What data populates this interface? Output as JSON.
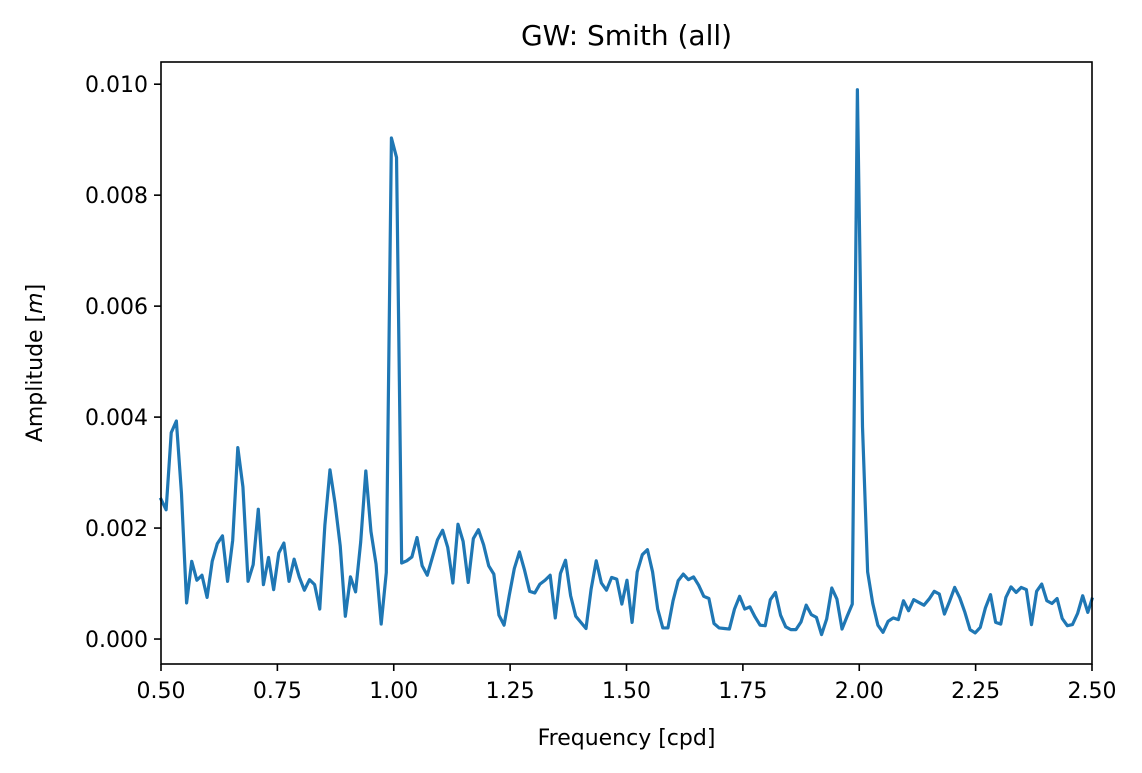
{
  "chart_data": {
    "type": "line",
    "title": "GW: Smith (all)",
    "xlabel": "Frequency [cpd]",
    "ylabel_prefix": "Amplitude [",
    "ylabel_unit": "m",
    "ylabel_suffix": "]",
    "xlim": [
      0.5,
      2.5
    ],
    "ylim": [
      -0.00045,
      0.0104
    ],
    "xticks": [
      0.5,
      0.75,
      1.0,
      1.25,
      1.5,
      1.75,
      2.0,
      2.25,
      2.5
    ],
    "xtick_labels": [
      "0.50",
      "0.75",
      "1.00",
      "1.25",
      "1.50",
      "1.75",
      "2.00",
      "2.25",
      "2.50"
    ],
    "yticks": [
      0.0,
      0.002,
      0.004,
      0.006,
      0.008,
      0.01
    ],
    "ytick_labels": [
      "0.000",
      "0.002",
      "0.004",
      "0.006",
      "0.008",
      "0.010"
    ],
    "grid": false,
    "line_color": "#1f77b4",
    "series": [
      {
        "x": [
          0.5,
          0.511,
          0.522,
          0.533,
          0.544,
          0.555,
          0.566,
          0.577,
          0.588,
          0.599,
          0.61,
          0.621,
          0.632,
          0.643,
          0.654,
          0.665,
          0.676,
          0.687,
          0.698,
          0.709,
          0.72,
          0.731,
          0.742,
          0.753,
          0.764,
          0.775,
          0.786,
          0.797,
          0.808,
          0.819,
          0.83,
          0.841,
          0.852,
          0.863,
          0.874,
          0.885,
          0.896,
          0.907,
          0.918,
          0.929,
          0.94,
          0.951,
          0.962,
          0.973,
          0.984,
          0.995,
          1.006,
          1.017,
          1.028,
          1.039,
          1.05,
          1.061,
          1.072,
          1.083,
          1.094,
          1.105,
          1.116,
          1.127,
          1.138,
          1.149,
          1.16,
          1.171,
          1.182,
          1.193,
          1.204,
          1.215,
          1.226,
          1.237,
          1.248,
          1.259,
          1.27,
          1.281,
          1.292,
          1.303,
          1.314,
          1.325,
          1.336,
          1.347,
          1.358,
          1.369,
          1.38,
          1.391,
          1.402,
          1.413,
          1.424,
          1.435,
          1.446,
          1.457,
          1.468,
          1.479,
          1.49,
          1.501,
          1.512,
          1.523,
          1.534,
          1.545,
          1.556,
          1.567,
          1.578,
          1.589,
          1.6,
          1.611,
          1.622,
          1.633,
          1.644,
          1.655,
          1.666,
          1.677,
          1.688,
          1.699,
          1.71,
          1.721,
          1.732,
          1.743,
          1.754,
          1.765,
          1.776,
          1.787,
          1.798,
          1.809,
          1.82,
          1.831,
          1.842,
          1.853,
          1.864,
          1.875,
          1.886,
          1.897,
          1.908,
          1.919,
          1.93,
          1.941,
          1.952,
          1.963,
          1.974,
          1.985,
          1.996,
          2.007,
          2.018,
          2.029,
          2.04,
          2.051,
          2.062,
          2.073,
          2.084,
          2.095,
          2.106,
          2.117,
          2.128,
          2.139,
          2.15,
          2.161,
          2.172,
          2.183,
          2.194,
          2.205,
          2.216,
          2.227,
          2.238,
          2.249,
          2.26,
          2.271,
          2.282,
          2.293,
          2.304,
          2.315,
          2.326,
          2.337,
          2.348,
          2.359,
          2.37,
          2.381,
          2.392,
          2.403,
          2.414,
          2.425,
          2.436,
          2.447,
          2.458,
          2.469,
          2.48,
          2.491,
          2.5
        ],
        "y": [
          0.00252,
          0.00233,
          0.00372,
          0.00393,
          0.00262,
          0.00065,
          0.0014,
          0.00106,
          0.00115,
          0.00075,
          0.0014,
          0.00172,
          0.00186,
          0.00104,
          0.00178,
          0.00345,
          0.00274,
          0.00104,
          0.00134,
          0.00234,
          0.00098,
          0.00147,
          0.00089,
          0.00155,
          0.00173,
          0.00104,
          0.00144,
          0.00112,
          0.00088,
          0.00107,
          0.00098,
          0.00054,
          0.00205,
          0.00305,
          0.00244,
          0.00168,
          0.00041,
          0.00112,
          0.00085,
          0.00175,
          0.00303,
          0.00194,
          0.00135,
          0.00027,
          0.0012,
          0.00903,
          0.00868,
          0.00137,
          0.00141,
          0.00148,
          0.00183,
          0.00132,
          0.00115,
          0.00147,
          0.00179,
          0.00196,
          0.00165,
          0.00101,
          0.00207,
          0.00176,
          0.00102,
          0.00181,
          0.00197,
          0.0017,
          0.00132,
          0.00117,
          0.00043,
          0.00025,
          0.00078,
          0.00127,
          0.00157,
          0.00124,
          0.00086,
          0.00083,
          0.00099,
          0.00106,
          0.00115,
          0.00038,
          0.00118,
          0.00142,
          0.00078,
          0.00041,
          0.0003,
          0.00019,
          0.0009,
          0.00141,
          0.00101,
          0.00088,
          0.00111,
          0.00108,
          0.00063,
          0.00106,
          0.0003,
          0.00121,
          0.00152,
          0.00161,
          0.00121,
          0.00054,
          0.0002,
          0.0002,
          0.00069,
          0.00105,
          0.00117,
          0.00107,
          0.00112,
          0.00097,
          0.00077,
          0.00073,
          0.00028,
          0.0002,
          0.00019,
          0.00018,
          0.00054,
          0.00077,
          0.00054,
          0.00058,
          0.0004,
          0.00025,
          0.00024,
          0.00071,
          0.00084,
          0.00043,
          0.00022,
          0.00017,
          0.00017,
          0.00031,
          0.00061,
          0.00044,
          0.00039,
          8e-05,
          0.00036,
          0.00092,
          0.00072,
          0.00018,
          0.00041,
          0.00063,
          0.0099,
          0.00382,
          0.00121,
          0.00064,
          0.00025,
          0.00012,
          0.00032,
          0.00038,
          0.00035,
          0.00069,
          0.00051,
          0.00071,
          0.00066,
          0.00061,
          0.00072,
          0.00086,
          0.00081,
          0.00045,
          0.00068,
          0.00093,
          0.00074,
          0.00048,
          0.00017,
          0.00011,
          0.00021,
          0.00056,
          0.0008,
          0.0003,
          0.00027,
          0.00075,
          0.00094,
          0.00084,
          0.00093,
          0.00089,
          0.00026,
          0.00086,
          0.00099,
          0.00069,
          0.00064,
          0.00073,
          0.00037,
          0.00024,
          0.00026,
          0.00046,
          0.00078,
          0.00048,
          0.00072
        ]
      }
    ]
  }
}
